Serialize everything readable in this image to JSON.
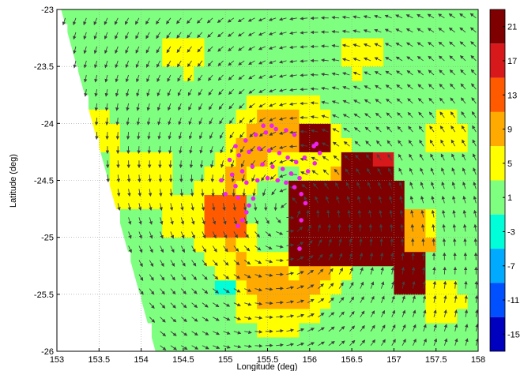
{
  "chart_data": {
    "type": "heatmap",
    "title": "",
    "xlabel": "Longitude (deg)",
    "ylabel": "Latitude (deg)",
    "xlim": [
      153,
      158
    ],
    "ylim": [
      -26,
      -23
    ],
    "x_ticks": [
      "153",
      "153.5",
      "154",
      "154.5",
      "155",
      "155.5",
      "156",
      "156.5",
      "157",
      "157.5",
      "158"
    ],
    "y_ticks": [
      "-23",
      "-23.5",
      "-24",
      "-24.5",
      "-25",
      "-25.5",
      "-26"
    ],
    "grid": true,
    "colorbar": {
      "range": [
        -17,
        23
      ],
      "ticks": [
        "21",
        "17",
        "13",
        "9",
        "5",
        "1",
        "-3",
        "-7",
        "-11",
        "-15"
      ],
      "levels": [
        {
          "from": 19,
          "to": 23,
          "color": "#7f0000"
        },
        {
          "from": 15,
          "to": 19,
          "color": "#d7191c"
        },
        {
          "from": 11,
          "to": 15,
          "color": "#ff5a00"
        },
        {
          "from": 7,
          "to": 11,
          "color": "#ffaa00"
        },
        {
          "from": 3,
          "to": 7,
          "color": "#ffff00"
        },
        {
          "from": -1,
          "to": 3,
          "color": "#7fff7f"
        },
        {
          "from": -5,
          "to": -1,
          "color": "#00ffd9"
        },
        {
          "from": -9,
          "to": -5,
          "color": "#00aaff"
        },
        {
          "from": -13,
          "to": -9,
          "color": "#0050ff"
        },
        {
          "from": -17,
          "to": -13,
          "color": "#0000bf"
        }
      ]
    },
    "vector_field": {
      "type": "cyclonic_wind",
      "center": {
        "lon": 155.75,
        "lat": -24.75
      },
      "arrow_color": "#404040"
    },
    "markers": {
      "color": "#ee22ee",
      "points": [
        [
          155.15,
          -24.9
        ],
        [
          155.2,
          -24.85
        ],
        [
          155.25,
          -24.78
        ],
        [
          155.28,
          -24.72
        ],
        [
          155.33,
          -24.66
        ],
        [
          155.0,
          -24.62
        ],
        [
          155.12,
          -24.55
        ],
        [
          155.25,
          -24.52
        ],
        [
          155.38,
          -24.5
        ],
        [
          155.5,
          -24.48
        ],
        [
          155.62,
          -24.5
        ],
        [
          155.72,
          -24.52
        ],
        [
          155.82,
          -24.56
        ],
        [
          155.9,
          -24.62
        ],
        [
          155.95,
          -24.7
        ],
        [
          154.95,
          -24.5
        ],
        [
          155.08,
          -24.45
        ],
        [
          155.2,
          -24.42
        ],
        [
          155.32,
          -24.38
        ],
        [
          155.44,
          -24.36
        ],
        [
          155.56,
          -24.38
        ],
        [
          155.68,
          -24.4
        ],
        [
          155.78,
          -24.44
        ],
        [
          155.88,
          -24.48
        ],
        [
          155.98,
          -24.42
        ],
        [
          155.05,
          -24.32
        ],
        [
          155.16,
          -24.28
        ],
        [
          155.28,
          -24.25
        ],
        [
          155.4,
          -24.22
        ],
        [
          155.52,
          -24.24
        ],
        [
          155.64,
          -24.26
        ],
        [
          155.74,
          -24.3
        ],
        [
          155.84,
          -24.34
        ],
        [
          155.94,
          -24.3
        ],
        [
          156.05,
          -24.2
        ],
        [
          155.12,
          -24.2
        ],
        [
          155.24,
          -24.15
        ],
        [
          155.36,
          -24.1
        ],
        [
          155.48,
          -24.08
        ],
        [
          155.6,
          -24.05
        ],
        [
          155.72,
          -24.06
        ],
        [
          155.82,
          -24.1
        ],
        [
          156.08,
          -24.18
        ],
        [
          156.12,
          -24.26
        ],
        [
          156.06,
          -24.35
        ],
        [
          155.45,
          -24.02
        ],
        [
          155.55,
          -24.02
        ],
        [
          155.9,
          -24.85
        ],
        [
          155.88,
          -25.1
        ],
        [
          155.15,
          -24.65
        ]
      ]
    }
  }
}
